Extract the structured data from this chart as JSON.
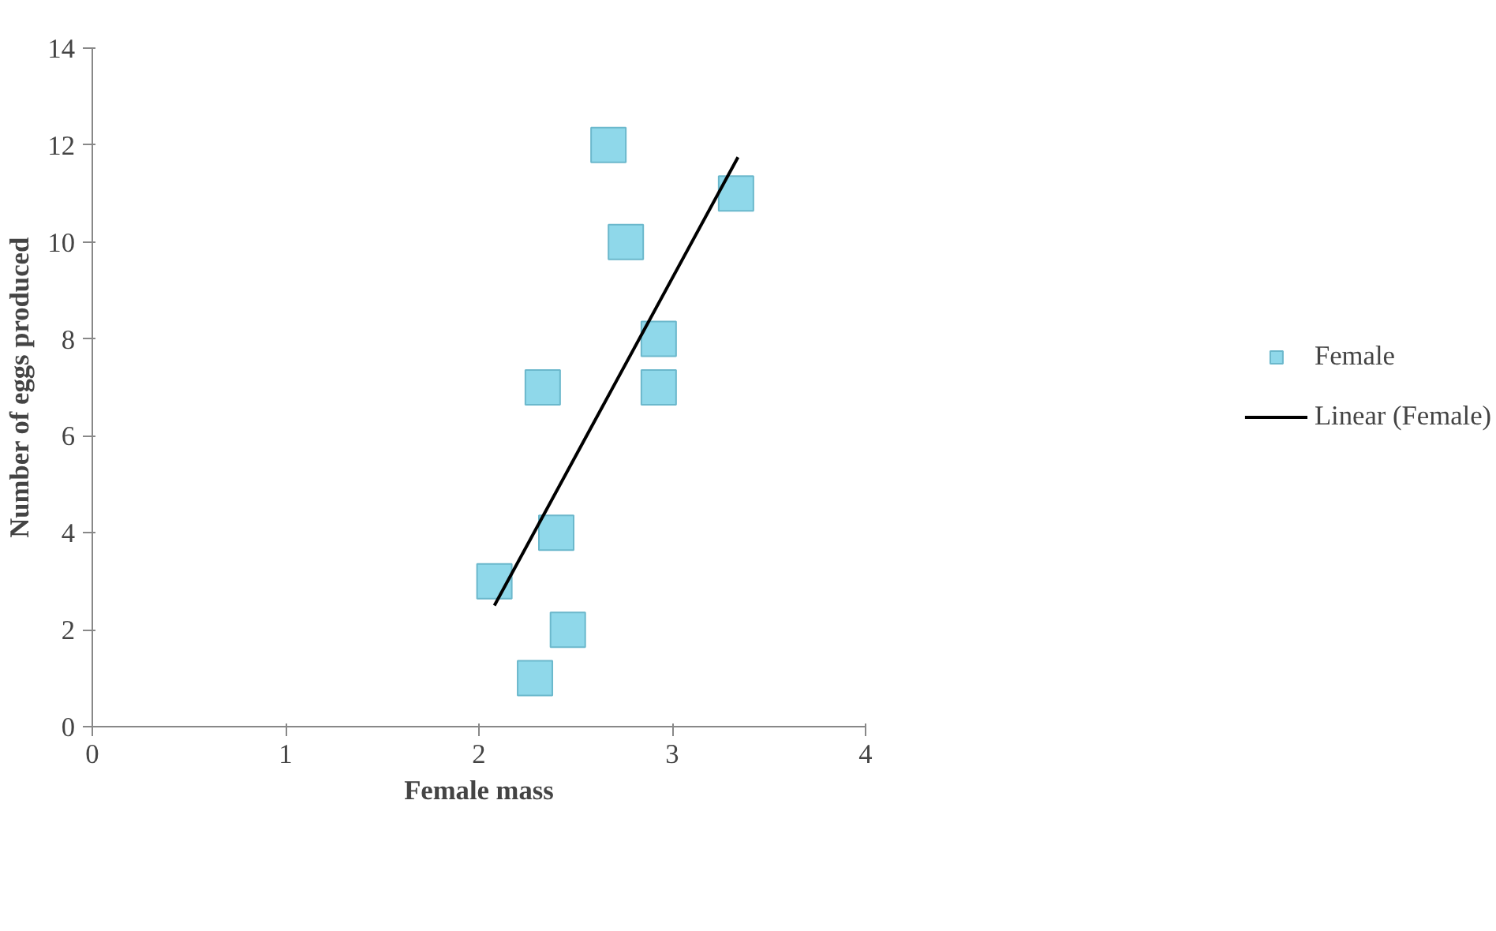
{
  "chart_data": {
    "type": "scatter",
    "xlabel": "Female mass",
    "ylabel": "Number of eggs produced",
    "xlim": [
      0,
      4
    ],
    "ylim": [
      0,
      14
    ],
    "xticks": [
      0,
      1,
      2,
      3,
      4
    ],
    "yticks": [
      0,
      2,
      4,
      6,
      8,
      10,
      12,
      14
    ],
    "grid": false,
    "legend": "right",
    "series": [
      {
        "name": "Female",
        "marker": "square",
        "color": "#8fd8ea",
        "x": [
          2.08,
          2.29,
          2.46,
          2.4,
          2.33,
          2.67,
          2.76,
          2.93,
          2.93,
          3.33
        ],
        "values": [
          3,
          1,
          2,
          4,
          7,
          12,
          10,
          8,
          7,
          11
        ]
      },
      {
        "name": "Linear (Female)",
        "type": "line",
        "color": "#000000",
        "x": [
          2.08,
          3.34
        ],
        "values": [
          2.5,
          11.75
        ]
      }
    ]
  }
}
